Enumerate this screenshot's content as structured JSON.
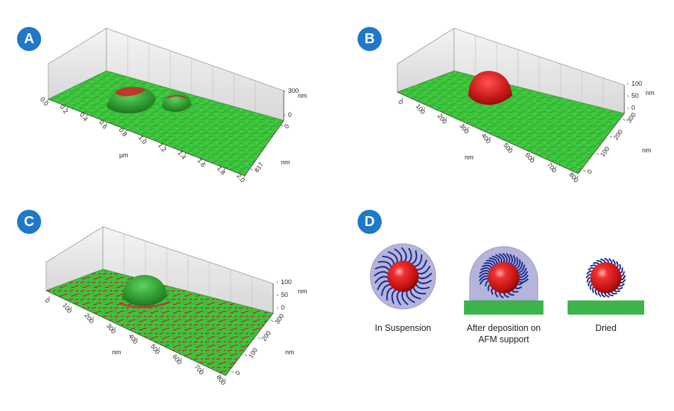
{
  "panels": {
    "A": {
      "badge": "A",
      "x_label": "µm",
      "x_ticks": [
        "0.0",
        "0.2",
        "0.4",
        "0.6",
        "0.8",
        "1.0",
        "1.2",
        "1.4",
        "1.6",
        "1.8",
        "2.0"
      ],
      "y_label": "nm",
      "y_ticks": [
        "817",
        "0"
      ],
      "z_label": "nm",
      "z_ticks": [
        "300",
        "0"
      ]
    },
    "B": {
      "badge": "B",
      "x_label": "nm",
      "x_ticks": [
        "0",
        "100",
        "200",
        "300",
        "400",
        "500",
        "600",
        "700",
        "800"
      ],
      "y_label": "nm",
      "y_ticks": [
        "300",
        "200",
        "100",
        "0"
      ],
      "z_label": "nm",
      "z_ticks": [
        "100",
        "50",
        "0"
      ]
    },
    "C": {
      "badge": "C",
      "x_label": "nm",
      "x_ticks": [
        "0",
        "100",
        "200",
        "300",
        "400",
        "500",
        "600",
        "700",
        "800"
      ],
      "y_label": "nm",
      "y_ticks": [
        "300",
        "200",
        "100",
        "0"
      ],
      "z_label": "nm",
      "z_ticks": [
        "100",
        "50",
        "0"
      ]
    },
    "D": {
      "badge": "D",
      "stages": [
        {
          "label_lines": [
            "In Suspension"
          ]
        },
        {
          "label_lines": [
            "After deposition on",
            "AFM support"
          ]
        },
        {
          "label_lines": [
            "Dried"
          ]
        }
      ]
    }
  },
  "colors": {
    "badge": "#1f78c8",
    "surface_green": "#3cc43c",
    "particle_red": "#d81e1e",
    "polymer_blue": "#1a2a8c",
    "corona_lavender": "#b4b4dc",
    "support_green": "#3cb44b"
  }
}
